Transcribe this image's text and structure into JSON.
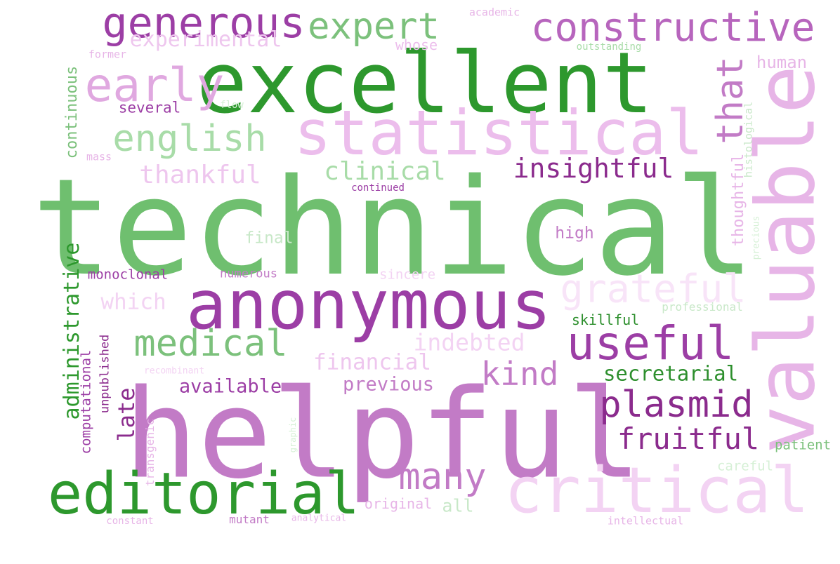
{
  "words": [
    {
      "id": "technical",
      "text": "technical",
      "color": "#6fbf6f"
    },
    {
      "id": "helpful",
      "text": "helpful",
      "color": "#c27bc6"
    },
    {
      "id": "excellent",
      "text": "excellent",
      "color": "#2d982d"
    },
    {
      "id": "valuable",
      "text": "valuable",
      "color": "#e7b5e7"
    },
    {
      "id": "anonymous",
      "text": "anonymous",
      "color": "#9c3ea5"
    },
    {
      "id": "statistical",
      "text": "statistical",
      "color": "#ecbdec"
    },
    {
      "id": "critical",
      "text": "critical",
      "color": "#f3d3f3"
    },
    {
      "id": "editorial",
      "text": "editorial",
      "color": "#2d982d"
    },
    {
      "id": "constructive",
      "text": "constructive",
      "color": "#b765bd"
    },
    {
      "id": "generous",
      "text": "generous",
      "color": "#9c3ea5"
    },
    {
      "id": "expert",
      "text": "expert",
      "color": "#7cc17c"
    },
    {
      "id": "early",
      "text": "early",
      "color": "#e0a8e0"
    },
    {
      "id": "english",
      "text": "english",
      "color": "#a8dca8"
    },
    {
      "id": "useful",
      "text": "useful",
      "color": "#9c3ea5"
    },
    {
      "id": "grateful",
      "text": "grateful",
      "color": "#f8e4f8"
    },
    {
      "id": "medical",
      "text": "medical",
      "color": "#7cc17c"
    },
    {
      "id": "plasmid",
      "text": "plasmid",
      "color": "#8b2b8d"
    },
    {
      "id": "that",
      "text": "that",
      "color": "#c27bc6"
    },
    {
      "id": "insightful",
      "text": "insightful",
      "color": "#8b2b8d"
    },
    {
      "id": "many",
      "text": "many",
      "color": "#c27bc6"
    },
    {
      "id": "kind",
      "text": "kind",
      "color": "#c27bc6"
    },
    {
      "id": "fruitful",
      "text": "fruitful",
      "color": "#8b2b8d"
    },
    {
      "id": "thankful",
      "text": "thankful",
      "color": "#eec6ee"
    },
    {
      "id": "clinical",
      "text": "clinical",
      "color": "#a8dca8"
    },
    {
      "id": "administrative",
      "text": "administrative",
      "color": "#2d982d"
    },
    {
      "id": "indebted",
      "text": "indebted",
      "color": "#f3d3f3"
    },
    {
      "id": "financial",
      "text": "financial",
      "color": "#eec6ee"
    },
    {
      "id": "experimental",
      "text": "experimental",
      "color": "#eec6ee"
    },
    {
      "id": "secretarial",
      "text": "secretarial",
      "color": "#2d8f2d"
    },
    {
      "id": "previous",
      "text": "previous",
      "color": "#c27bc6"
    },
    {
      "id": "available",
      "text": "available",
      "color": "#9c3ea5"
    },
    {
      "id": "late",
      "text": "late",
      "color": "#8b2b8d"
    },
    {
      "id": "which",
      "text": "which",
      "color": "#f3d3f3"
    },
    {
      "id": "thoughtful",
      "text": "thoughtful",
      "color": "#e7b5e7"
    },
    {
      "id": "continuous",
      "text": "continuous",
      "color": "#7cc17c"
    },
    {
      "id": "human",
      "text": "human",
      "color": "#e7b5e7"
    },
    {
      "id": "several",
      "text": "several",
      "color": "#9c3ea5"
    },
    {
      "id": "whose",
      "text": "whose",
      "color": "#ecbdec"
    },
    {
      "id": "final",
      "text": "final",
      "color": "#c8e8c8"
    },
    {
      "id": "high",
      "text": "high",
      "color": "#c27bc6"
    },
    {
      "id": "all",
      "text": "all",
      "color": "#c8e8c8"
    },
    {
      "id": "original",
      "text": "original",
      "color": "#e7b5e7"
    },
    {
      "id": "skillful",
      "text": "skillful",
      "color": "#2d8f2d"
    },
    {
      "id": "patient",
      "text": "patient",
      "color": "#7cc17c"
    },
    {
      "id": "careful",
      "text": "careful",
      "color": "#d6f0d6"
    },
    {
      "id": "monoclonal",
      "text": "monoclonal",
      "color": "#9c3ea5"
    },
    {
      "id": "numerous",
      "text": "numerous",
      "color": "#c27bc6"
    },
    {
      "id": "sincere",
      "text": "sincere",
      "color": "#f3d3f3"
    },
    {
      "id": "professional",
      "text": "professional",
      "color": "#c8e8c8"
    },
    {
      "id": "unpublished",
      "text": "unpublished",
      "color": "#8b2b8d"
    },
    {
      "id": "computational",
      "text": "computational",
      "color": "#9c3ea5"
    },
    {
      "id": "histological",
      "text": "histological",
      "color": "#c8e8c8"
    },
    {
      "id": "precious",
      "text": "precious",
      "color": "#d6f0d6"
    },
    {
      "id": "transgenic",
      "text": "transgenic",
      "color": "#e7b5e7"
    },
    {
      "id": "former",
      "text": "former",
      "color": "#e7b5e7"
    },
    {
      "id": "academic",
      "text": "academic",
      "color": "#e7b5e7"
    },
    {
      "id": "outstanding",
      "text": "outstanding",
      "color": "#a8dca8"
    },
    {
      "id": "flow",
      "text": "flow",
      "color": "#d6f0d6"
    },
    {
      "id": "mass",
      "text": "mass",
      "color": "#e7b5e7"
    },
    {
      "id": "continued",
      "text": "continued",
      "color": "#9c3ea5"
    },
    {
      "id": "recombinant",
      "text": "recombinant",
      "color": "#f3d3f3"
    },
    {
      "id": "graphic",
      "text": "graphic",
      "color": "#d6f0d6"
    },
    {
      "id": "constant",
      "text": "constant",
      "color": "#e7b5e7"
    },
    {
      "id": "mutant",
      "text": "mutant",
      "color": "#c27bc6"
    },
    {
      "id": "analytical",
      "text": "analytical",
      "color": "#e7b5e7"
    },
    {
      "id": "intellectual",
      "text": "intellectual",
      "color": "#e7b5e7"
    }
  ]
}
